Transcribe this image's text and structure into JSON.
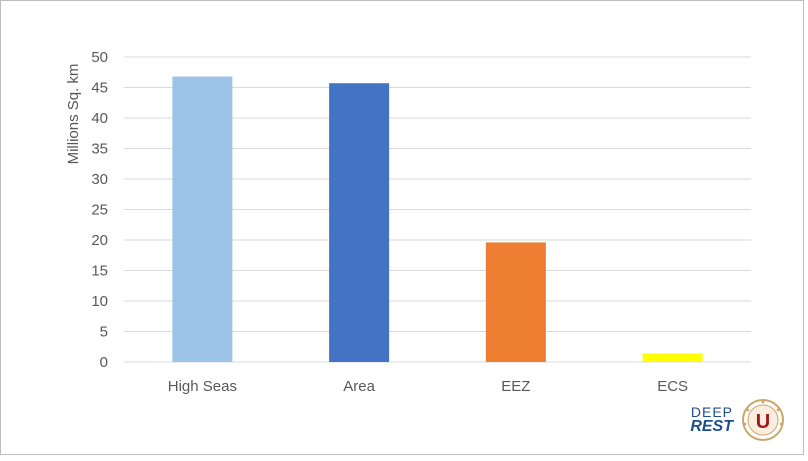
{
  "chart_data": {
    "type": "bar",
    "title": "",
    "xlabel": "",
    "ylabel": "Millions Sq. km",
    "ylim": [
      0,
      50
    ],
    "yticks": [
      0,
      5,
      10,
      15,
      20,
      25,
      30,
      35,
      40,
      45,
      50
    ],
    "categories": [
      "High Seas",
      "Area",
      "EEZ",
      "ECS"
    ],
    "values": [
      46.8,
      45.7,
      19.6,
      1.4
    ],
    "colors": [
      "#9dc3e6",
      "#4472c4",
      "#ed7d31",
      "#ffff00"
    ],
    "grid": true,
    "legend": "none"
  },
  "logos": {
    "deep_rest": {
      "line1": "DEEP",
      "line2": "REST"
    },
    "university_seal": {
      "name": "university-seal",
      "letter": "U",
      "ring_text": "UNIVERSIDAD DE SEVILLA"
    }
  }
}
